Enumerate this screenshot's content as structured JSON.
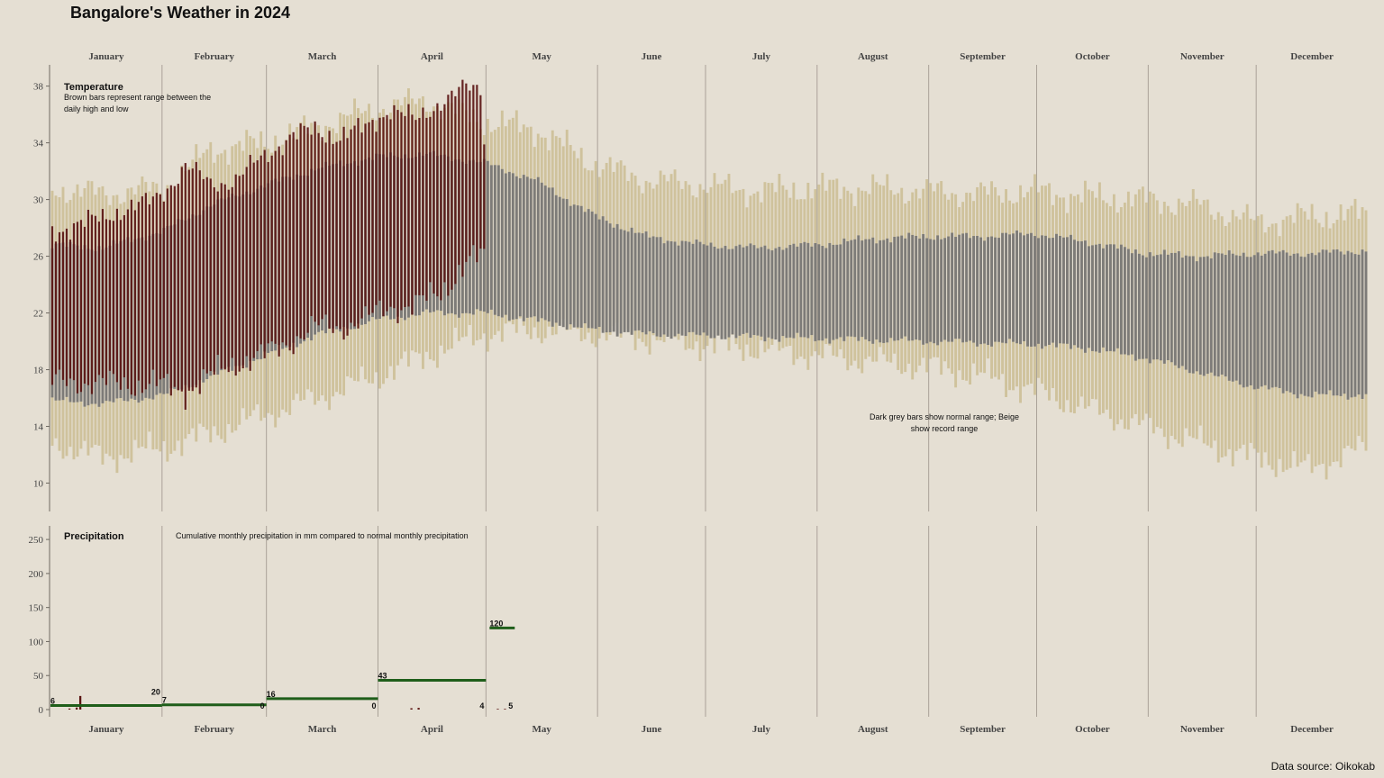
{
  "title": "Bangalore's Weather in 2024",
  "source": "Data source: Oikokab",
  "chart_data": [
    {
      "type": "bar",
      "panel": "temperature",
      "title": "Temperature",
      "notes": [
        "Brown bars represent range between the",
        "daily high and low"
      ],
      "notes2": [
        "Dark grey bars show normal range; Beige",
        "show record range"
      ],
      "months": [
        "January",
        "February",
        "March",
        "April",
        "May",
        "June",
        "July",
        "August",
        "September",
        "October",
        "November",
        "December"
      ],
      "yticks": [
        10,
        14,
        18,
        22,
        26,
        30,
        34,
        38
      ],
      "ylim": [
        8,
        39.5
      ],
      "days_in_year": 366,
      "record_high": [
        [
          1,
          30.8
        ],
        [
          15,
          30.4
        ],
        [
          32,
          30.8
        ],
        [
          45,
          33.5
        ],
        [
          60,
          34.0
        ],
        [
          75,
          35.2
        ],
        [
          91,
          36.4
        ],
        [
          105,
          37.0
        ],
        [
          121,
          35.5
        ],
        [
          135,
          35.0
        ],
        [
          152,
          32.5
        ],
        [
          166,
          31.4
        ],
        [
          182,
          31.0
        ],
        [
          197,
          30.6
        ],
        [
          213,
          30.8
        ],
        [
          228,
          30.8
        ],
        [
          244,
          30.6
        ],
        [
          259,
          30.4
        ],
        [
          274,
          30.6
        ],
        [
          289,
          30.2
        ],
        [
          305,
          30.0
        ],
        [
          320,
          29.6
        ],
        [
          335,
          28.4
        ],
        [
          350,
          28.8
        ],
        [
          366,
          29.0
        ]
      ],
      "record_low": [
        [
          1,
          12.8
        ],
        [
          15,
          11.8
        ],
        [
          32,
          12.5
        ],
        [
          45,
          13.5
        ],
        [
          60,
          14.8
        ],
        [
          75,
          16.0
        ],
        [
          91,
          17.5
        ],
        [
          105,
          19.0
        ],
        [
          121,
          20.5
        ],
        [
          135,
          20.8
        ],
        [
          152,
          20.5
        ],
        [
          166,
          20.2
        ],
        [
          182,
          19.8
        ],
        [
          197,
          19.5
        ],
        [
          213,
          19.0
        ],
        [
          228,
          18.6
        ],
        [
          244,
          18.2
        ],
        [
          259,
          17.6
        ],
        [
          274,
          16.5
        ],
        [
          289,
          15.2
        ],
        [
          305,
          14.0
        ],
        [
          320,
          12.8
        ],
        [
          335,
          11.8
        ],
        [
          350,
          11.0
        ],
        [
          366,
          12.5
        ]
      ],
      "normal_high": [
        [
          1,
          26.8
        ],
        [
          15,
          26.6
        ],
        [
          32,
          27.8
        ],
        [
          45,
          29.6
        ],
        [
          60,
          31.0
        ],
        [
          75,
          32.2
        ],
        [
          91,
          33.0
        ],
        [
          105,
          33.2
        ],
        [
          121,
          32.6
        ],
        [
          135,
          31.4
        ],
        [
          152,
          28.8
        ],
        [
          166,
          27.4
        ],
        [
          182,
          26.8
        ],
        [
          197,
          26.6
        ],
        [
          213,
          26.8
        ],
        [
          228,
          27.2
        ],
        [
          244,
          27.4
        ],
        [
          259,
          27.4
        ],
        [
          274,
          27.6
        ],
        [
          289,
          27.0
        ],
        [
          305,
          26.2
        ],
        [
          320,
          26.0
        ],
        [
          335,
          26.2
        ],
        [
          350,
          26.2
        ],
        [
          366,
          26.4
        ]
      ],
      "normal_low": [
        [
          1,
          15.8
        ],
        [
          15,
          15.6
        ],
        [
          32,
          16.2
        ],
        [
          45,
          17.5
        ],
        [
          60,
          19.0
        ],
        [
          75,
          20.5
        ],
        [
          91,
          21.5
        ],
        [
          105,
          22.0
        ],
        [
          121,
          22.0
        ],
        [
          135,
          21.5
        ],
        [
          152,
          20.8
        ],
        [
          166,
          20.5
        ],
        [
          182,
          20.4
        ],
        [
          197,
          20.3
        ],
        [
          213,
          20.2
        ],
        [
          228,
          20.1
        ],
        [
          244,
          20.0
        ],
        [
          259,
          19.9
        ],
        [
          274,
          19.8
        ],
        [
          289,
          19.5
        ],
        [
          305,
          18.8
        ],
        [
          320,
          17.8
        ],
        [
          335,
          16.8
        ],
        [
          350,
          16.2
        ],
        [
          366,
          16.2
        ]
      ],
      "actual_high": [
        [
          1,
          27.5
        ],
        [
          8,
          28.5
        ],
        [
          15,
          28.5
        ],
        [
          22,
          29.6
        ],
        [
          29,
          29.8
        ],
        [
          32,
          30.5
        ],
        [
          38,
          32.5
        ],
        [
          45,
          31.0
        ],
        [
          52,
          31.5
        ],
        [
          60,
          33.0
        ],
        [
          67,
          34.5
        ],
        [
          74,
          34.8
        ],
        [
          81,
          34.5
        ],
        [
          88,
          35.0
        ],
        [
          95,
          36.5
        ],
        [
          102,
          35.5
        ],
        [
          109,
          37.0
        ],
        [
          116,
          37.8
        ],
        [
          120,
          37.8
        ],
        [
          121,
          34.5
        ]
      ],
      "actual_low": [
        [
          1,
          17.0
        ],
        [
          8,
          17.2
        ],
        [
          15,
          17.0
        ],
        [
          22,
          17.0
        ],
        [
          29,
          17.0
        ],
        [
          32,
          16.8
        ],
        [
          38,
          16.5
        ],
        [
          45,
          17.5
        ],
        [
          52,
          18.5
        ],
        [
          60,
          19.0
        ],
        [
          67,
          20.0
        ],
        [
          74,
          21.0
        ],
        [
          81,
          21.0
        ],
        [
          88,
          21.5
        ],
        [
          95,
          22.5
        ],
        [
          102,
          22.5
        ],
        [
          109,
          23.5
        ],
        [
          116,
          25.5
        ],
        [
          121,
          26.0
        ]
      ],
      "actual_last_day": 121
    },
    {
      "type": "bar",
      "panel": "precipitation",
      "title": "Precipitation",
      "note": "Cumulative monthly precipitation in mm compared to normal monthly precipitation",
      "yticks": [
        0,
        50,
        100,
        150,
        200,
        250
      ],
      "ylim": [
        0,
        270
      ],
      "monthly": [
        {
          "month": "January",
          "cumulative": 6,
          "normal": 20
        },
        {
          "month": "February",
          "cumulative": 7,
          "normal": 0
        },
        {
          "month": "March",
          "cumulative": 16,
          "normal": 0
        },
        {
          "month": "April",
          "cumulative": 43,
          "normal": 4
        },
        {
          "month": "May",
          "cumulative": 120,
          "normal": 5
        }
      ],
      "label_texts": [
        "6",
        "20",
        "7",
        "0",
        "16",
        "0",
        "43",
        "4",
        "120",
        "5"
      ],
      "daily_bars": [
        [
          6,
          1.5
        ],
        [
          8,
          3
        ],
        [
          9,
          20
        ],
        [
          101,
          2
        ],
        [
          103,
          2.5
        ],
        [
          125,
          1
        ],
        [
          127,
          1
        ]
      ]
    }
  ]
}
